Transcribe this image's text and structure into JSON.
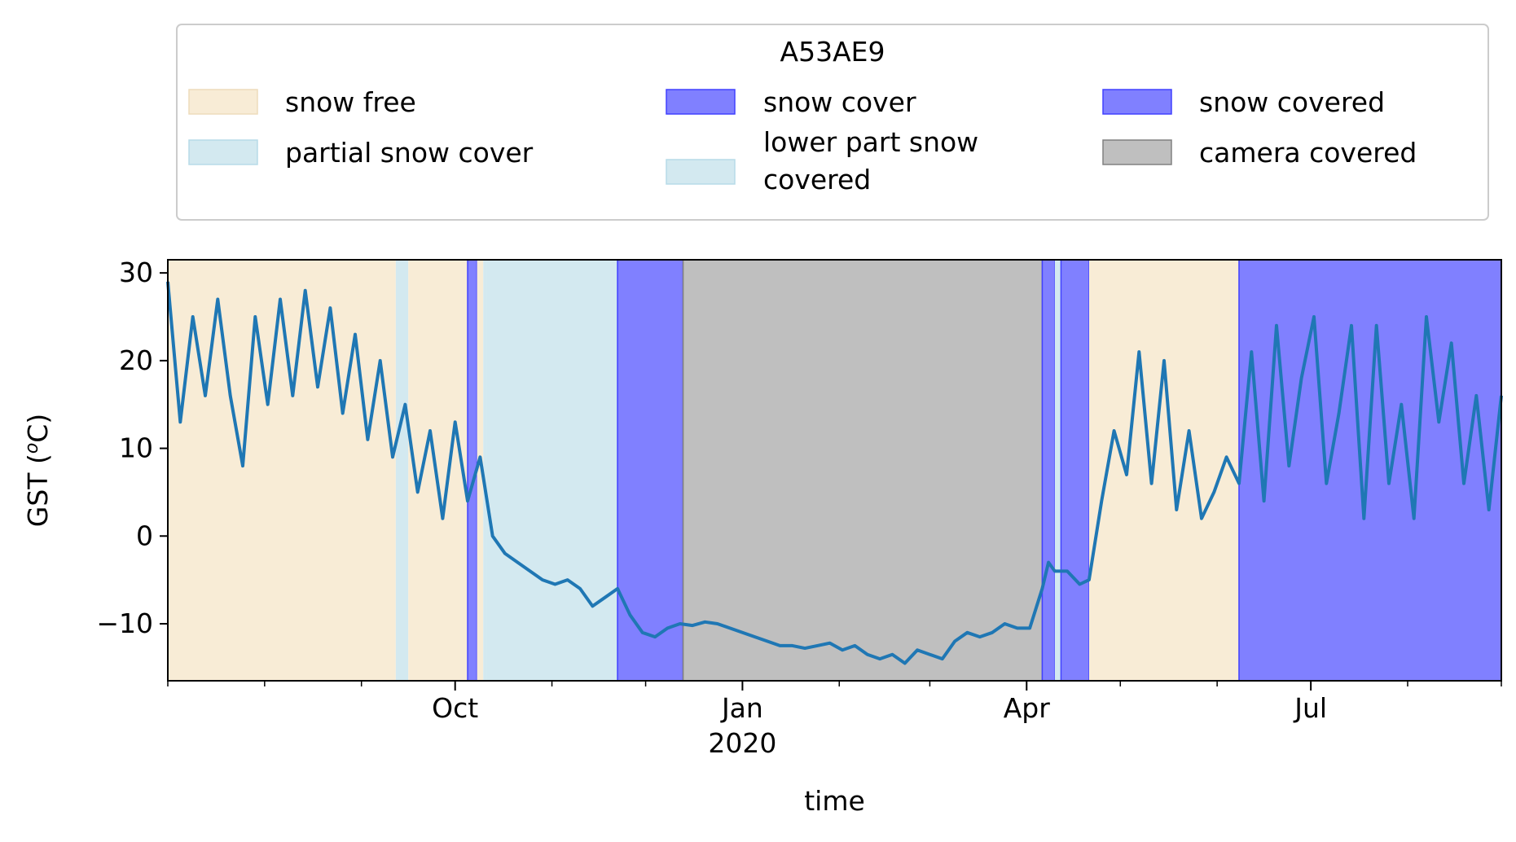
{
  "chart_data": {
    "type": "line",
    "xlabel": "time",
    "ylabel": "GST (",
    "ylabel_sup": "o",
    "ylabel_suffix": "C)",
    "ylim": [
      -16.5,
      31.5
    ],
    "xlim": [
      "2019-07-01",
      "2020-08-31"
    ],
    "yticks": [
      30,
      20,
      10,
      0,
      -10
    ],
    "ytick_labels": [
      "30",
      "20",
      "10",
      "0",
      "−10"
    ],
    "xtick_labels": [
      {
        "date": "2019-10-01",
        "label": "Oct"
      },
      {
        "date": "2020-01-01",
        "label": "Jan",
        "sublabel": "2020"
      },
      {
        "date": "2020-04-01",
        "label": "Apr"
      },
      {
        "date": "2020-07-01",
        "label": "Jul"
      }
    ],
    "minor_ticks": [
      "2019-07-01",
      "2019-08-01",
      "2019-09-01",
      "2019-11-01",
      "2019-12-01",
      "2020-02-01",
      "2020-03-01",
      "2020-05-01",
      "2020-06-01",
      "2020-08-01",
      "2020-08-31"
    ],
    "grid": false,
    "legend": {
      "title": "A53AE9",
      "placement": "top",
      "entries": [
        {
          "label": "snow free",
          "color": "#f8ecd6"
        },
        {
          "label": "partial snow cover",
          "color": "#d3e9f0"
        },
        {
          "label": "snow cover",
          "color": "#8080ff"
        },
        {
          "label": "lower part snow covered",
          "color": "#d3e9f0"
        },
        {
          "label": "snow covered",
          "color": "#8080ff"
        },
        {
          "label": "camera covered",
          "color": "#bfbfbf"
        }
      ]
    },
    "bands": [
      {
        "start": "2019-07-01",
        "end": "2019-09-12",
        "category": "snow free"
      },
      {
        "start": "2019-09-12",
        "end": "2019-09-16",
        "category": "partial snow cover"
      },
      {
        "start": "2019-09-16",
        "end": "2019-10-05",
        "category": "snow free"
      },
      {
        "start": "2019-10-05",
        "end": "2019-10-08",
        "category": "snow cover"
      },
      {
        "start": "2019-10-08",
        "end": "2019-10-10",
        "category": "snow free"
      },
      {
        "start": "2019-10-10",
        "end": "2019-10-11",
        "category": "partial snow cover"
      },
      {
        "start": "2019-10-11",
        "end": "2019-11-22",
        "category": "partial snow cover"
      },
      {
        "start": "2019-11-22",
        "end": "2019-12-13",
        "category": "snow cover"
      },
      {
        "start": "2019-12-13",
        "end": "2020-04-06",
        "category": "camera covered"
      },
      {
        "start": "2020-04-06",
        "end": "2020-04-10",
        "category": "snow cover"
      },
      {
        "start": "2020-04-10",
        "end": "2020-04-12",
        "category": "partial snow cover"
      },
      {
        "start": "2020-04-12",
        "end": "2020-04-21",
        "category": "snow cover"
      },
      {
        "start": "2020-04-21",
        "end": "2020-06-08",
        "category": "snow free"
      },
      {
        "start": "2020-06-08",
        "end": "2020-08-31",
        "category": "snow covered"
      }
    ],
    "series": [
      {
        "color": "#1f77b4",
        "x": [
          "2019-07-01",
          "2019-07-05",
          "2019-07-09",
          "2019-07-13",
          "2019-07-17",
          "2019-07-21",
          "2019-07-25",
          "2019-07-29",
          "2019-08-02",
          "2019-08-06",
          "2019-08-10",
          "2019-08-14",
          "2019-08-18",
          "2019-08-22",
          "2019-08-26",
          "2019-08-30",
          "2019-09-03",
          "2019-09-07",
          "2019-09-11",
          "2019-09-15",
          "2019-09-19",
          "2019-09-23",
          "2019-09-27",
          "2019-10-01",
          "2019-10-05",
          "2019-10-09",
          "2019-10-13",
          "2019-10-17",
          "2019-10-21",
          "2019-10-25",
          "2019-10-29",
          "2019-11-02",
          "2019-11-06",
          "2019-11-10",
          "2019-11-14",
          "2019-11-18",
          "2019-11-22",
          "2019-11-26",
          "2019-11-30",
          "2019-12-04",
          "2019-12-08",
          "2019-12-12",
          "2019-12-16",
          "2019-12-20",
          "2019-12-24",
          "2019-12-28",
          "2020-01-01",
          "2020-01-05",
          "2020-01-09",
          "2020-01-13",
          "2020-01-17",
          "2020-01-21",
          "2020-01-25",
          "2020-01-29",
          "2020-02-02",
          "2020-02-06",
          "2020-02-10",
          "2020-02-14",
          "2020-02-18",
          "2020-02-22",
          "2020-02-26",
          "2020-03-01",
          "2020-03-05",
          "2020-03-09",
          "2020-03-13",
          "2020-03-17",
          "2020-03-21",
          "2020-03-25",
          "2020-03-29",
          "2020-04-02",
          "2020-04-06",
          "2020-04-08",
          "2020-04-10",
          "2020-04-14",
          "2020-04-18",
          "2020-04-21",
          "2020-04-25",
          "2020-04-29",
          "2020-05-03",
          "2020-05-07",
          "2020-05-11",
          "2020-05-15",
          "2020-05-19",
          "2020-05-23",
          "2020-05-27",
          "2020-05-31",
          "2020-06-04",
          "2020-06-08",
          "2020-06-12",
          "2020-06-16",
          "2020-06-20",
          "2020-06-24",
          "2020-06-28",
          "2020-07-02",
          "2020-07-06",
          "2020-07-10",
          "2020-07-14",
          "2020-07-18",
          "2020-07-22",
          "2020-07-26",
          "2020-07-30",
          "2020-08-03",
          "2020-08-07",
          "2020-08-11",
          "2020-08-15",
          "2020-08-19",
          "2020-08-23",
          "2020-08-27",
          "2020-08-31"
        ],
        "y": [
          29,
          13,
          25,
          16,
          27,
          16,
          8,
          25,
          15,
          27,
          16,
          28,
          17,
          26,
          14,
          23,
          11,
          20,
          9,
          15,
          5,
          12,
          2,
          13,
          4,
          9,
          0,
          -2,
          -3,
          -4,
          -5,
          -5.5,
          -5,
          -6,
          -8,
          -7,
          -6,
          -9,
          -11,
          -11.5,
          -10.5,
          -10,
          -10.2,
          -9.8,
          -10,
          -10.5,
          -11,
          -11.5,
          -12,
          -12.5,
          -12.5,
          -12.8,
          -12.5,
          -12.2,
          -13,
          -12.5,
          -13.5,
          -14,
          -13.5,
          -14.5,
          -13,
          -13.5,
          -14,
          -12,
          -11,
          -11.5,
          -11,
          -10,
          -10.5,
          -10.5,
          -6,
          -3,
          -4,
          -4,
          -5.5,
          -5,
          4,
          12,
          7,
          21,
          6,
          20,
          3,
          12,
          2,
          5,
          9,
          6,
          21,
          4,
          24,
          8,
          18,
          25,
          6,
          14,
          24,
          2,
          24,
          6,
          15,
          2,
          25,
          13,
          22,
          6,
          16,
          3,
          16
        ]
      }
    ]
  }
}
